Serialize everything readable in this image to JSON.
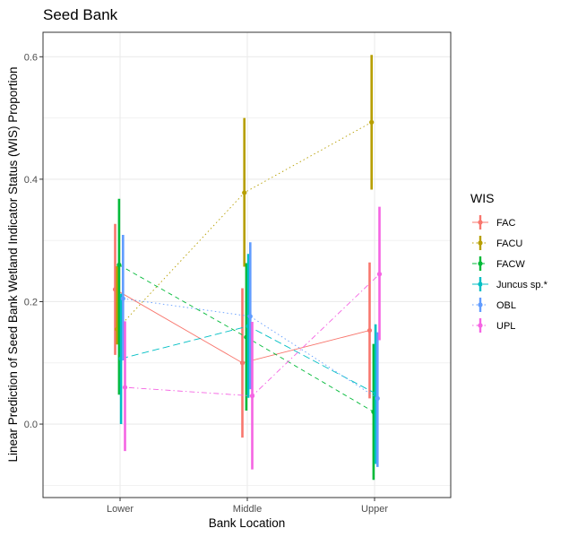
{
  "chart_data": {
    "type": "line",
    "title": "Seed Bank",
    "xlabel": "Bank Location",
    "ylabel": "Linear Prediction of Seed Bank Wetland Indicator Status (WIS) Proportion",
    "categories": [
      "Lower",
      "Middle",
      "Upper"
    ],
    "yticks": [
      "0.0",
      "0.2",
      "0.4",
      "0.6"
    ],
    "ylim": [
      -0.12,
      0.64
    ],
    "grid": true,
    "error_bars": true,
    "legend": {
      "title": "WIS",
      "placement": "right"
    },
    "series": [
      {
        "name": "FAC",
        "color": "#F8766D",
        "dash": "solid",
        "values": [
          0.22,
          0.1,
          0.153
        ],
        "lower": [
          0.113,
          -0.022,
          0.042
        ],
        "upper": [
          0.327,
          0.222,
          0.264
        ]
      },
      {
        "name": "FACU",
        "color": "#B79F00",
        "dash": "dotted",
        "values": [
          0.155,
          0.378,
          0.493
        ],
        "lower": [
          0.13,
          0.257,
          0.383
        ],
        "upper": [
          0.258,
          0.5,
          0.603
        ]
      },
      {
        "name": "FACW",
        "color": "#00BA38",
        "dash": "dashed",
        "values": [
          0.26,
          0.142,
          0.02
        ],
        "lower": [
          0.048,
          0.022,
          -0.091
        ],
        "upper": [
          0.368,
          0.263,
          0.131
        ]
      },
      {
        "name": "Juncus sp.*",
        "color": "#00BFC4",
        "dash": "longdash",
        "values": [
          0.107,
          0.16,
          0.05
        ],
        "lower": [
          0.0,
          0.043,
          -0.065
        ],
        "upper": [
          0.213,
          0.278,
          0.163
        ]
      },
      {
        "name": "OBL",
        "color": "#619CFF",
        "dash": "dotted",
        "values": [
          0.205,
          0.176,
          0.042
        ],
        "lower": [
          0.104,
          0.057,
          -0.07
        ],
        "upper": [
          0.309,
          0.297,
          0.15
        ]
      },
      {
        "name": "UPL",
        "color": "#F564E3",
        "dash": "dotdash",
        "values": [
          0.06,
          0.046,
          0.245
        ],
        "lower": [
          -0.044,
          -0.074,
          0.137
        ],
        "upper": [
          0.168,
          0.167,
          0.355
        ]
      }
    ]
  }
}
